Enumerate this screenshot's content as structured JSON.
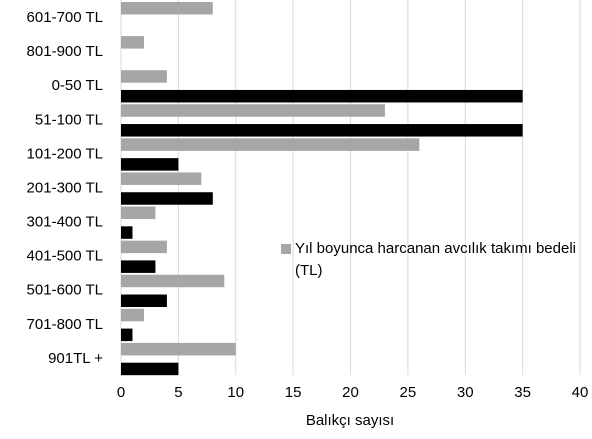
{
  "chart_data": {
    "type": "bar",
    "orientation": "horizontal",
    "categories": [
      "601-700 TL",
      "801-900 TL",
      "0-50 TL",
      "51-100 TL",
      "101-200 TL",
      "201-300 TL",
      "301-400 TL",
      "401-500 TL",
      "501-600 TL",
      "701-800 TL",
      "901TL +"
    ],
    "series": [
      {
        "name": "Yıl boyunca harcanan avcılık takımı bedeli (TL)",
        "color": "#a6a6a6",
        "values": [
          8,
          2,
          4,
          23,
          26,
          7,
          3,
          4,
          9,
          2,
          10
        ]
      },
      {
        "color": "#000000",
        "values": [
          0,
          0,
          35,
          35,
          5,
          8,
          1,
          3,
          4,
          1,
          5
        ]
      }
    ],
    "xlabel": "Balıkçı sayısı",
    "xlim": [
      0,
      40
    ],
    "xticks": [
      0,
      5,
      10,
      15,
      20,
      25,
      30,
      35,
      40
    ],
    "grid": true
  }
}
